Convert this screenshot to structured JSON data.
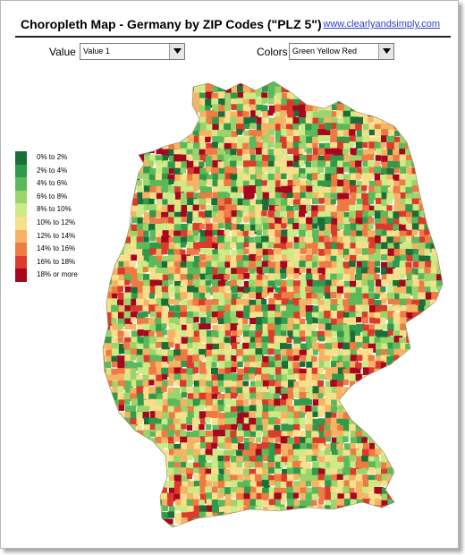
{
  "header": {
    "title": "Choropleth Map - Germany by ZIP Codes (\"PLZ 5\")",
    "link_text": "www.clearlyandsimply.com"
  },
  "controls": {
    "value_label": "Value",
    "value_selected": "Value 1",
    "colors_label": "Colors",
    "colors_selected": "Green Yellow Red"
  },
  "legend": {
    "items": [
      {
        "label": "0%  to 2%",
        "color": "#1a6e38"
      },
      {
        "label": "2% to 4%",
        "color": "#2f9a4a"
      },
      {
        "label": "4% to 6%",
        "color": "#5cb95a"
      },
      {
        "label": "6% to 8%",
        "color": "#9bd46a"
      },
      {
        "label": "8% to 10%",
        "color": "#ccea85"
      },
      {
        "label": "10% to 12%",
        "color": "#f9de8b"
      },
      {
        "label": "12% to 14%",
        "color": "#f6b363"
      },
      {
        "label": "14% to 16%",
        "color": "#ee7b43"
      },
      {
        "label": "16% to 18%",
        "color": "#dc3b2c"
      },
      {
        "label": "18% or more",
        "color": "#a6061e"
      }
    ]
  },
  "map": {
    "region": "Germany",
    "unit": "PLZ 5",
    "palette": [
      "#1a6e38",
      "#2f9a4a",
      "#5cb95a",
      "#9bd46a",
      "#ccea85",
      "#f9de8b",
      "#f6b363",
      "#ee7b43",
      "#dc3b2c",
      "#a6061e"
    ]
  }
}
